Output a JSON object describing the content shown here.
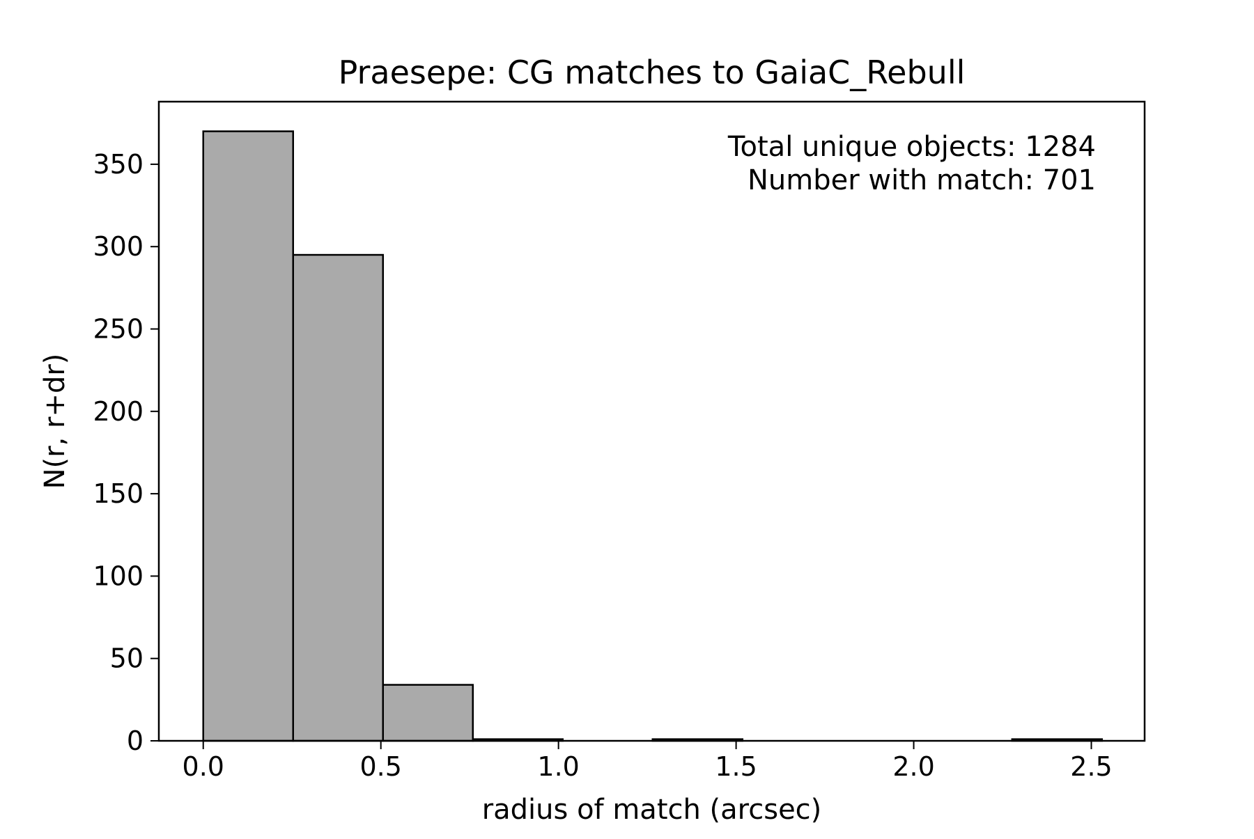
{
  "chart_data": {
    "type": "histogram",
    "title": "Praesepe: CG matches to GaiaC_Rebull",
    "xlabel": "radius of match (arcsec)",
    "ylabel": "N(r, r+dr)",
    "xlim": [
      -0.125,
      2.65
    ],
    "ylim": [
      0,
      388
    ],
    "xticks": [
      0.0,
      0.5,
      1.0,
      1.5,
      2.0,
      2.5
    ],
    "xtick_labels": [
      "0.0",
      "0.5",
      "1.0",
      "1.5",
      "2.0",
      "2.5"
    ],
    "yticks": [
      0,
      50,
      100,
      150,
      200,
      250,
      300,
      350
    ],
    "ytick_labels": [
      "0",
      "50",
      "100",
      "150",
      "200",
      "250",
      "300",
      "350"
    ],
    "bins": [
      {
        "x0": 0.0,
        "x1": 0.253,
        "count": 370
      },
      {
        "x0": 0.253,
        "x1": 0.506,
        "count": 295
      },
      {
        "x0": 0.506,
        "x1": 0.759,
        "count": 34
      },
      {
        "x0": 0.759,
        "x1": 1.012,
        "count": 1
      },
      {
        "x0": 1.012,
        "x1": 1.265,
        "count": 0
      },
      {
        "x0": 1.265,
        "x1": 1.518,
        "count": 1
      },
      {
        "x0": 1.518,
        "x1": 1.771,
        "count": 0
      },
      {
        "x0": 1.771,
        "x1": 2.024,
        "count": 0
      },
      {
        "x0": 2.024,
        "x1": 2.277,
        "count": 0
      },
      {
        "x0": 2.277,
        "x1": 2.53,
        "count": 1
      }
    ],
    "bar_fill": "#aaaaaa",
    "bar_edge": "#000000",
    "annotations": [
      "Total unique objects: 1284",
      "Number with match: 701"
    ],
    "annotation_position": "top-right",
    "grid": false
  }
}
